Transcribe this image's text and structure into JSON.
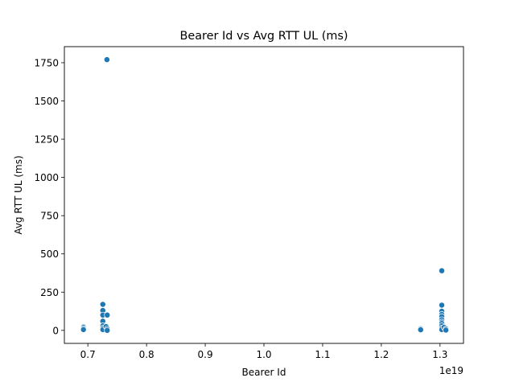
{
  "chart_data": {
    "type": "scatter",
    "title": "Bearer Id vs Avg RTT UL (ms)",
    "xlabel": "Bearer Id",
    "ylabel": "Avg RTT UL (ms)",
    "x_offset_label": "1e19",
    "xlim": [
      0.66,
      1.34
    ],
    "ylim": [
      -85,
      1855
    ],
    "x_ticks": [
      0.7,
      0.8,
      0.9,
      1.0,
      1.1,
      1.2,
      1.3
    ],
    "x_tick_labels": [
      "0.7",
      "0.8",
      "0.9",
      "1.0",
      "1.1",
      "1.2",
      "1.3"
    ],
    "y_ticks": [
      0,
      250,
      500,
      750,
      1000,
      1250,
      1500,
      1750
    ],
    "y_tick_labels": [
      "0",
      "250",
      "500",
      "750",
      "1000",
      "1250",
      "1500",
      "1750"
    ],
    "grid": false,
    "marker_color": "#1f77b4",
    "series": [
      {
        "points": [
          {
            "x": 0.6925,
            "y": 25
          },
          {
            "x": 0.6925,
            "y": 15
          },
          {
            "x": 0.6925,
            "y": 8
          },
          {
            "x": 0.6925,
            "y": 20
          },
          {
            "x": 0.6925,
            "y": 12
          },
          {
            "x": 0.6925,
            "y": 5
          },
          {
            "x": 0.7255,
            "y": 170
          },
          {
            "x": 0.7255,
            "y": 130
          },
          {
            "x": 0.7255,
            "y": 100
          },
          {
            "x": 0.7255,
            "y": 60
          },
          {
            "x": 0.7255,
            "y": 30
          },
          {
            "x": 0.7255,
            "y": 15
          },
          {
            "x": 0.7255,
            "y": 5
          },
          {
            "x": 0.731,
            "y": 25
          },
          {
            "x": 0.733,
            "y": 100
          },
          {
            "x": 0.733,
            "y": 10
          },
          {
            "x": 0.733,
            "y": 0
          },
          {
            "x": 0.7325,
            "y": 1770
          },
          {
            "x": 1.267,
            "y": 10
          },
          {
            "x": 1.267,
            "y": 4
          },
          {
            "x": 1.303,
            "y": 390
          },
          {
            "x": 1.303,
            "y": 165
          },
          {
            "x": 1.303,
            "y": 125
          },
          {
            "x": 1.303,
            "y": 105
          },
          {
            "x": 1.303,
            "y": 90
          },
          {
            "x": 1.303,
            "y": 70
          },
          {
            "x": 1.303,
            "y": 55
          },
          {
            "x": 1.303,
            "y": 45
          },
          {
            "x": 1.303,
            "y": 30
          },
          {
            "x": 1.303,
            "y": 15
          },
          {
            "x": 1.303,
            "y": 5
          },
          {
            "x": 1.307,
            "y": 20
          },
          {
            "x": 1.31,
            "y": 10
          },
          {
            "x": 1.31,
            "y": 2
          }
        ]
      }
    ]
  }
}
